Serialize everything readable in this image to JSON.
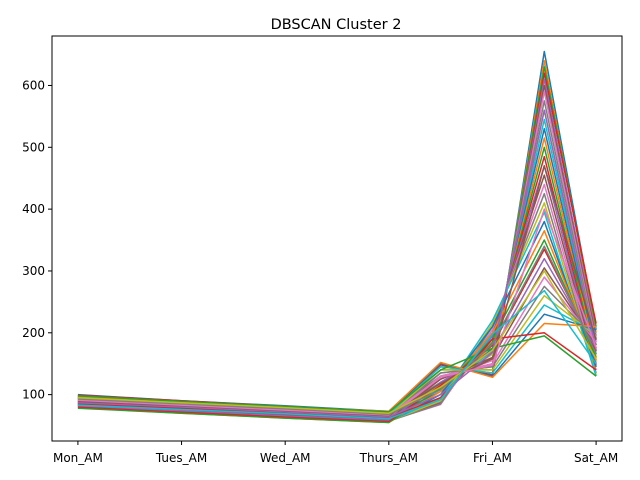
{
  "chart_data": {
    "type": "line",
    "title": "DBSCAN Cluster 2",
    "xlabel": "",
    "ylabel": "",
    "categories": [
      "Mon_AM",
      "Tues_AM",
      "Wed_AM",
      "Thurs_AM",
      "Fri_AM",
      "Sat_AM"
    ],
    "x": [
      0,
      1,
      2,
      3,
      3.5,
      4,
      4.5,
      5
    ],
    "x_tick_values": [
      0,
      1,
      2,
      3,
      4,
      5
    ],
    "y_ticks": [
      100,
      200,
      300,
      400,
      500,
      600
    ],
    "xlim": [
      -0.25,
      5.25
    ],
    "ylim": [
      25,
      680
    ],
    "grid": false,
    "legend": "none",
    "colors": [
      "#1f77b4",
      "#ff7f0e",
      "#2ca02c",
      "#d62728",
      "#9467bd",
      "#8c564b",
      "#e377c2",
      "#7f7f7f",
      "#bcbd22",
      "#17becf"
    ],
    "series": [
      {
        "values": [
          100,
          90,
          82,
          73,
          150,
          130,
          655,
          205
        ]
      },
      {
        "values": [
          98,
          89,
          81,
          72,
          145,
          135,
          640,
          200
        ]
      },
      {
        "values": [
          97,
          88,
          80,
          71,
          140,
          140,
          630,
          210
        ]
      },
      {
        "values": [
          99,
          90,
          81,
          72,
          148,
          132,
          620,
          215
        ]
      },
      {
        "values": [
          96,
          87,
          79,
          70,
          135,
          145,
          610,
          195
        ]
      },
      {
        "values": [
          95,
          86,
          78,
          69,
          130,
          150,
          600,
          190
        ]
      },
      {
        "values": [
          94,
          85,
          77,
          68,
          125,
          155,
          590,
          185
        ]
      },
      {
        "values": [
          93,
          84,
          76,
          67,
          120,
          160,
          575,
          180
        ]
      },
      {
        "values": [
          92,
          83,
          75,
          66,
          115,
          165,
          560,
          175
        ]
      },
      {
        "values": [
          91,
          82,
          74,
          65,
          110,
          170,
          545,
          170
        ]
      },
      {
        "values": [
          90,
          81,
          73,
          64,
          105,
          175,
          530,
          165
        ]
      },
      {
        "values": [
          89,
          80,
          72,
          63,
          100,
          180,
          515,
          160
        ]
      },
      {
        "values": [
          88,
          79,
          71,
          62,
          95,
          185,
          500,
          155
        ]
      },
      {
        "values": [
          87,
          78,
          70,
          61,
          90,
          190,
          485,
          150
        ]
      },
      {
        "values": [
          86,
          77,
          69,
          60,
          88,
          195,
          470,
          148
        ]
      },
      {
        "values": [
          85,
          76,
          68,
          59,
          86,
          200,
          455,
          145
        ]
      },
      {
        "values": [
          84,
          75,
          67,
          58,
          84,
          205,
          440,
          140
        ]
      },
      {
        "values": [
          83,
          74,
          66,
          57,
          85,
          210,
          425,
          135
        ]
      },
      {
        "values": [
          82,
          73,
          65,
          57,
          90,
          215,
          410,
          132
        ]
      },
      {
        "values": [
          81,
          72,
          64,
          56,
          95,
          220,
          395,
          130
        ]
      },
      {
        "values": [
          80,
          71,
          63,
          56,
          100,
          210,
          380,
          145
        ]
      },
      {
        "values": [
          79,
          70,
          62,
          55,
          105,
          200,
          365,
          155
        ]
      },
      {
        "values": [
          78,
          70,
          62,
          55,
          110,
          190,
          350,
          160
        ]
      },
      {
        "values": [
          80,
          72,
          64,
          57,
          115,
          180,
          335,
          170
        ]
      },
      {
        "values": [
          82,
          74,
          66,
          59,
          120,
          170,
          320,
          175
        ]
      },
      {
        "values": [
          84,
          76,
          68,
          61,
          125,
          160,
          305,
          180
        ]
      },
      {
        "values": [
          86,
          78,
          70,
          63,
          130,
          150,
          290,
          185
        ]
      },
      {
        "values": [
          88,
          80,
          72,
          65,
          135,
          145,
          275,
          190
        ]
      },
      {
        "values": [
          90,
          82,
          74,
          67,
          140,
          140,
          260,
          195
        ]
      },
      {
        "values": [
          92,
          84,
          76,
          69,
          145,
          135,
          245,
          200
        ]
      },
      {
        "values": [
          94,
          86,
          78,
          71,
          150,
          130,
          230,
          205
        ]
      },
      {
        "values": [
          96,
          88,
          80,
          73,
          152,
          128,
          215,
          210
        ]
      },
      {
        "values": [
          98,
          89,
          81,
          72,
          140,
          175,
          195,
          130
        ]
      },
      {
        "values": [
          85,
          78,
          70,
          62,
          95,
          190,
          200,
          140
        ]
      },
      {
        "values": [
          87,
          80,
          72,
          64,
          100,
          168,
          560,
          172
        ]
      },
      {
        "values": [
          89,
          82,
          74,
          66,
          118,
          158,
          470,
          188
        ]
      },
      {
        "values": [
          91,
          83,
          75,
          67,
          128,
          148,
          400,
          176
        ]
      },
      {
        "values": [
          93,
          85,
          77,
          68,
          108,
          182,
          340,
          166
        ]
      },
      {
        "values": [
          95,
          87,
          79,
          70,
          112,
          172,
          300,
          158
        ]
      },
      {
        "values": [
          83,
          76,
          69,
          61,
          92,
          198,
          268,
          150
        ]
      }
    ]
  }
}
